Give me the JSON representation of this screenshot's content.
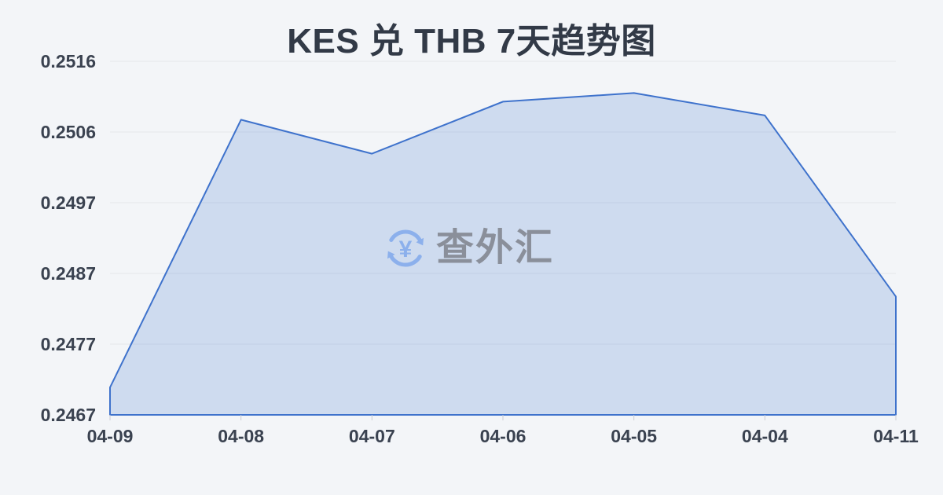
{
  "chart_data": {
    "type": "area",
    "title": "KES 兑 THB 7天趋势图",
    "categories": [
      "04-09",
      "04-08",
      "04-07",
      "04-06",
      "04-05",
      "04-04",
      "04-11"
    ],
    "values": [
      0.24708,
      0.25079,
      0.25032,
      0.25104,
      0.25116,
      0.25085,
      0.24834
    ],
    "y_tick_labels": [
      "0.2516",
      "0.2506",
      "0.2497",
      "0.2487",
      "0.2477",
      "0.2467"
    ],
    "ylim": [
      0.2467,
      0.2516
    ],
    "xlabel": "",
    "ylabel": "",
    "grid": "horizontal",
    "legend": "none",
    "line_color": "#3e72cc",
    "fill_color": "rgba(62,114,204,0.2)",
    "grid_color": "#e4e6ea",
    "tick_color": "#c9ccd3",
    "label_color": "#3a4250",
    "title_color": "#323a47",
    "background_color": "#f3f5f8"
  },
  "watermark": {
    "text": "查外汇",
    "currency_symbol": "¥",
    "icon": "currency-exchange-circular-arrows-icon",
    "icon_color": "#8cb0ec",
    "text_color": "#8a8f9a"
  }
}
